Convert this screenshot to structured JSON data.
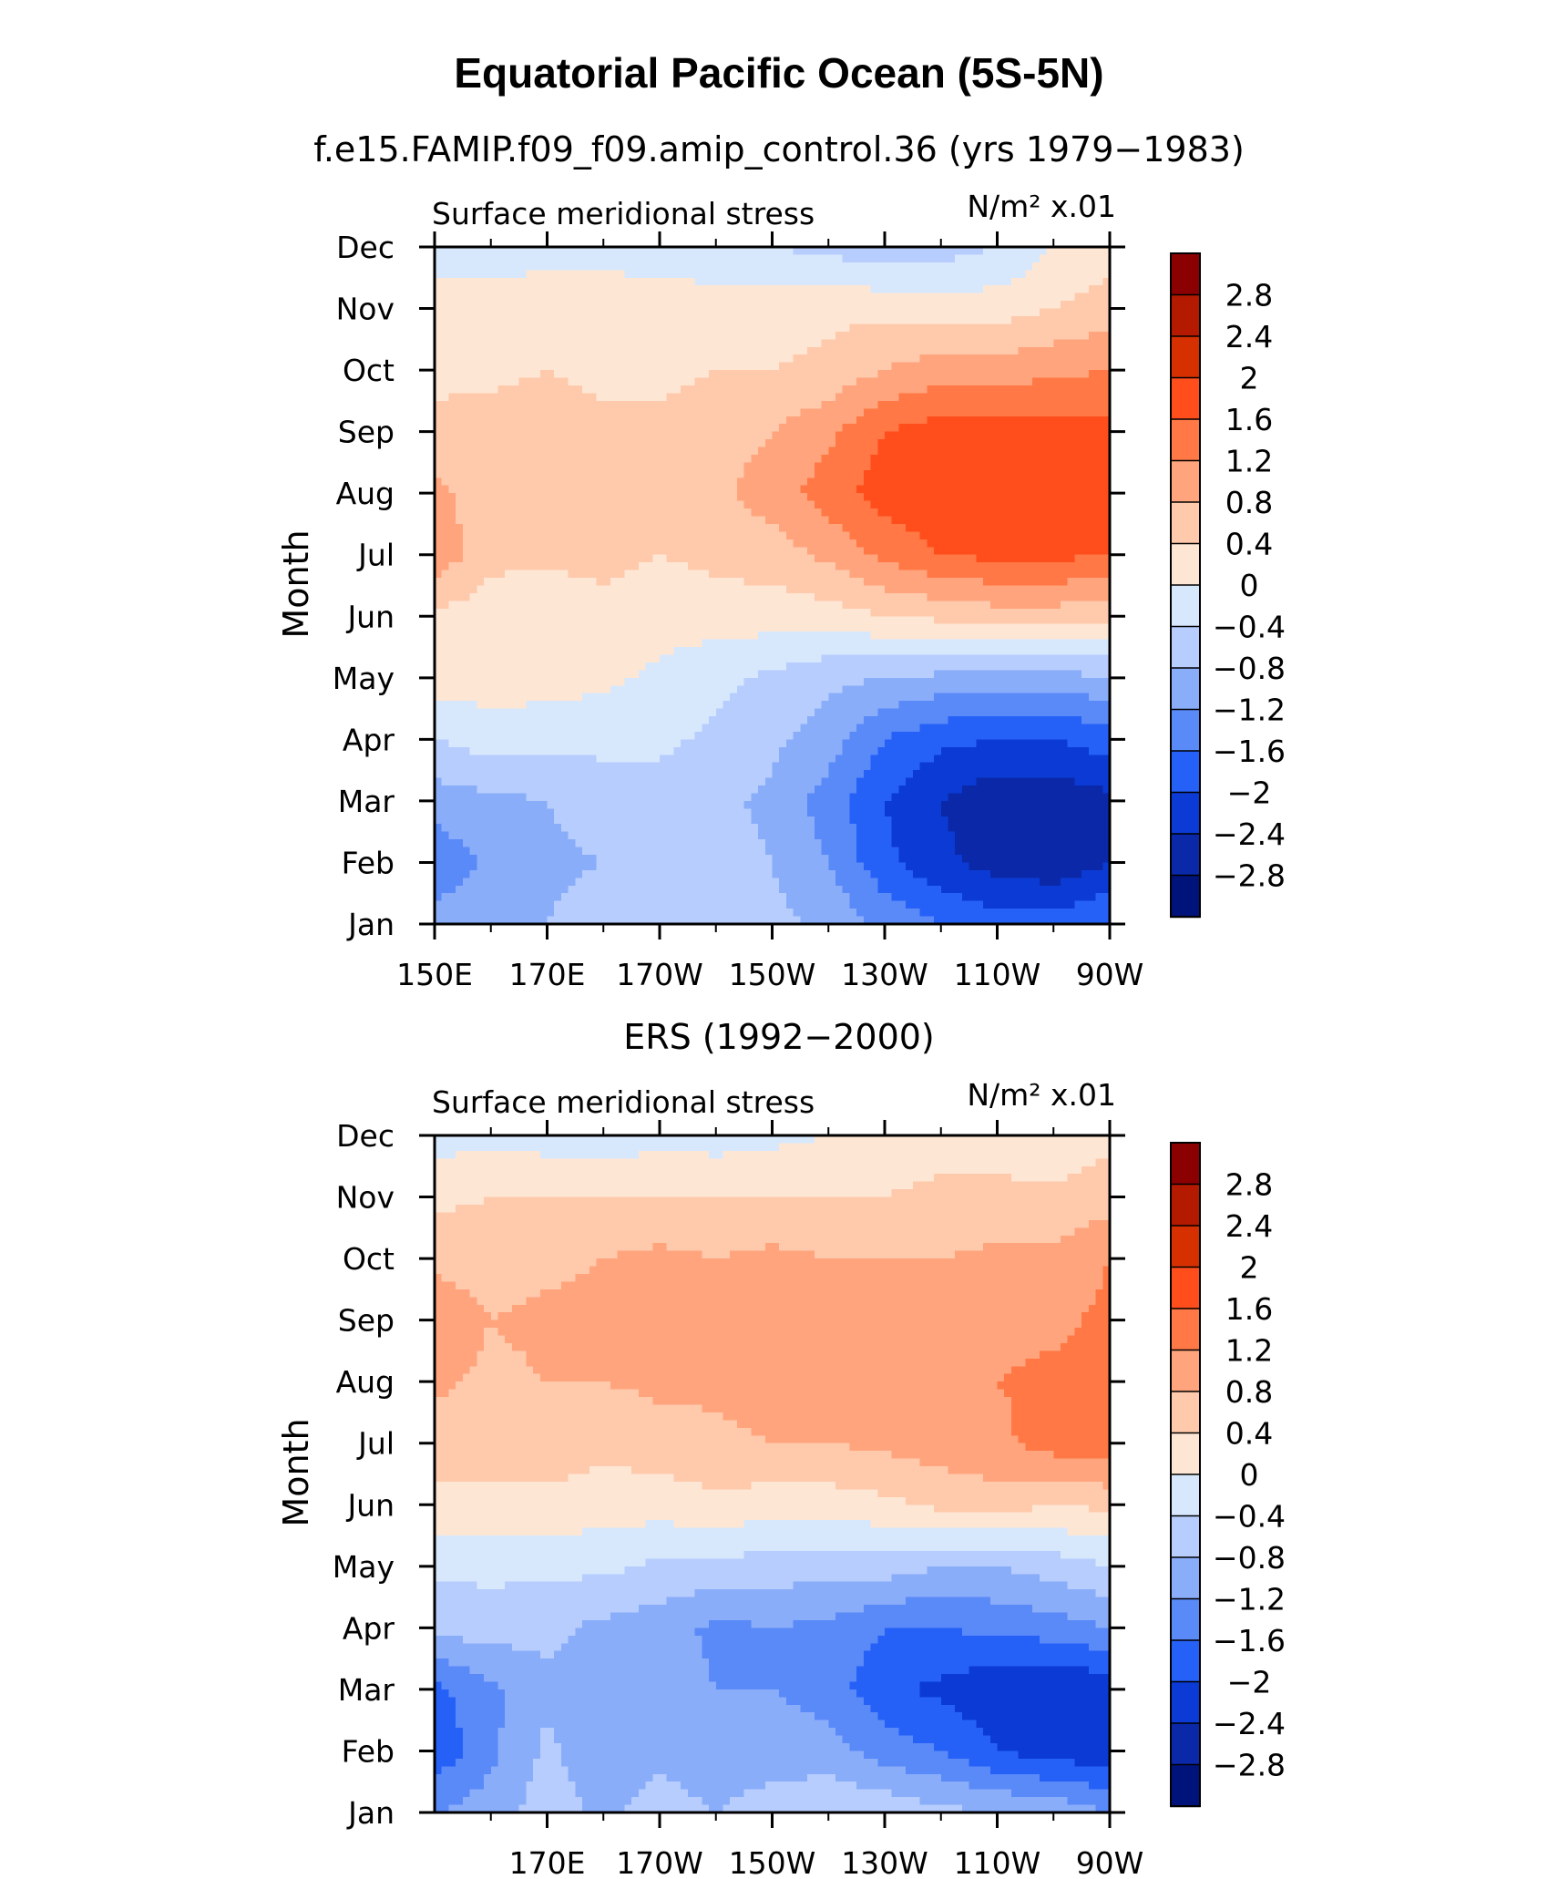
{
  "figure": {
    "title": "Equatorial Pacific Ocean (5S-5N)"
  },
  "colorbar": {
    "labels": [
      "2.8",
      "2.4",
      "2",
      "1.6",
      "1.2",
      "0.8",
      "0.4",
      "0",
      "−0.4",
      "−0.8",
      "−1.2",
      "−1.6",
      "−2",
      "−2.4",
      "−2.8"
    ],
    "colors": [
      "#8b0000",
      "#b31a00",
      "#d63000",
      "#ff4e1c",
      "#ff7845",
      "#ffa47c",
      "#ffc9ab",
      "#fee6d4",
      "#d7e8fd",
      "#b7cdfd",
      "#8aadfa",
      "#5a89f8",
      "#2661f7",
      "#0b3bd4",
      "#0a28a8",
      "#00137a"
    ]
  },
  "chart_data": [
    {
      "type": "heatmap",
      "subtitle": "f.e15.FAMIP.f09_f09.amip_control.36 (yrs 1979−1983)",
      "variable_label": "Surface meridional stress",
      "units_label": "N/m² x.01",
      "ylabel": "Month",
      "y_ticks": [
        "Jan",
        "Feb",
        "Mar",
        "Apr",
        "May",
        "Jun",
        "Jul",
        "Aug",
        "Sep",
        "Oct",
        "Nov",
        "Dec"
      ],
      "x_ticks": [
        "150E",
        "170E",
        "170W",
        "150W",
        "130W",
        "110W",
        "90W"
      ],
      "x_range": [
        "150E",
        "90W"
      ],
      "grid_lon": [
        150,
        160,
        170,
        180,
        190,
        200,
        210,
        220,
        230,
        240,
        250,
        260,
        270
      ],
      "grid_month": [
        "Jan",
        "Feb",
        "Mar",
        "Apr",
        "May",
        "Jun",
        "Jul",
        "Aug",
        "Sep",
        "Oct",
        "Nov",
        "Dec"
      ],
      "values": [
        [
          -1.0,
          -1.0,
          -0.8,
          -0.6,
          -0.6,
          -0.6,
          -0.7,
          -0.9,
          -1.3,
          -1.6,
          -1.8,
          -1.8,
          -1.6
        ],
        [
          -1.5,
          -1.1,
          -0.9,
          -0.8,
          -0.6,
          -0.6,
          -0.8,
          -1.2,
          -1.9,
          -2.3,
          -2.6,
          -2.7,
          -2.4
        ],
        [
          -1.0,
          -0.9,
          -0.8,
          -0.6,
          -0.6,
          -0.7,
          -0.9,
          -1.4,
          -2.0,
          -2.4,
          -2.7,
          -2.7,
          -2.5
        ],
        [
          -0.4,
          -0.2,
          -0.3,
          -0.3,
          -0.3,
          -0.5,
          -0.7,
          -1.0,
          -1.6,
          -1.9,
          -2.0,
          -2.0,
          -1.8
        ],
        [
          0.2,
          0.2,
          0.2,
          0.1,
          -0.1,
          -0.3,
          -0.5,
          -0.7,
          -0.8,
          -0.9,
          -1.0,
          -1.0,
          -0.8
        ],
        [
          0.3,
          0.2,
          0.1,
          0.3,
          0.2,
          0.2,
          0.2,
          0.2,
          0.4,
          0.5,
          0.6,
          0.6,
          0.5
        ],
        [
          1.1,
          0.5,
          0.5,
          0.5,
          0.4,
          0.5,
          0.6,
          0.9,
          1.3,
          1.6,
          1.7,
          1.7,
          1.6
        ],
        [
          0.9,
          0.6,
          0.5,
          0.5,
          0.5,
          0.7,
          1.0,
          1.4,
          1.8,
          1.9,
          1.9,
          1.9,
          1.8
        ],
        [
          0.5,
          0.6,
          0.6,
          0.5,
          0.5,
          0.6,
          0.8,
          1.1,
          1.6,
          1.8,
          1.8,
          1.8,
          1.7
        ],
        [
          0.3,
          0.3,
          0.4,
          0.3,
          0.3,
          0.4,
          0.4,
          0.5,
          0.8,
          1.0,
          1.0,
          1.1,
          1.2
        ],
        [
          0.3,
          0.2,
          0.3,
          0.3,
          0.2,
          0.2,
          0.2,
          0.3,
          0.3,
          0.2,
          0.2,
          0.4,
          0.6
        ],
        [
          -0.3,
          -0.2,
          -0.2,
          -0.2,
          -0.2,
          -0.3,
          -0.4,
          -0.5,
          -0.7,
          -0.6,
          -0.4,
          0.0,
          0.2
        ]
      ]
    },
    {
      "type": "heatmap",
      "subtitle": "ERS (1992−2000)",
      "variable_label": "Surface meridional stress",
      "units_label": "N/m² x.01",
      "ylabel": "Month",
      "y_ticks": [
        "Jan",
        "Feb",
        "Mar",
        "Apr",
        "May",
        "Jun",
        "Jul",
        "Aug",
        "Sep",
        "Oct",
        "Nov",
        "Dec"
      ],
      "x_ticks": [
        "170E",
        "170W",
        "150W",
        "130W",
        "110W",
        "90W"
      ],
      "x_range": [
        "150E",
        "90W"
      ],
      "grid_lon": [
        150,
        160,
        170,
        180,
        190,
        200,
        210,
        220,
        230,
        240,
        250,
        260,
        270
      ],
      "grid_month": [
        "Jan",
        "Feb",
        "Mar",
        "Apr",
        "May",
        "Jun",
        "Jul",
        "Aug",
        "Sep",
        "Oct",
        "Nov",
        "Dec"
      ],
      "values": [
        [
          -1.2,
          -1.0,
          -0.6,
          -0.9,
          -0.6,
          -0.8,
          -0.6,
          -0.5,
          -0.5,
          -0.7,
          -0.8,
          -0.9,
          -1.2
        ],
        [
          -1.9,
          -1.3,
          -0.7,
          -1.1,
          -0.9,
          -1.1,
          -1.0,
          -1.0,
          -1.4,
          -1.6,
          -2.0,
          -2.2,
          -2.3
        ],
        [
          -1.7,
          -1.3,
          -0.9,
          -1.1,
          -1.0,
          -1.2,
          -1.2,
          -1.4,
          -1.9,
          -2.1,
          -2.3,
          -2.4,
          -2.3
        ],
        [
          -0.7,
          -0.6,
          -0.7,
          -0.9,
          -1.0,
          -1.3,
          -1.2,
          -1.3,
          -1.6,
          -1.6,
          -1.5,
          -1.4,
          -1.2
        ],
        [
          -0.3,
          -0.3,
          -0.3,
          -0.3,
          -0.5,
          -0.5,
          -0.6,
          -0.6,
          -0.6,
          -0.8,
          -0.8,
          -0.6,
          -0.4
        ],
        [
          0.3,
          0.3,
          0.3,
          0.2,
          0.2,
          0.3,
          0.2,
          0.2,
          0.3,
          0.5,
          0.6,
          0.4,
          0.5
        ],
        [
          0.6,
          0.6,
          0.6,
          0.5,
          0.6,
          0.7,
          0.8,
          0.8,
          0.9,
          1.0,
          1.1,
          1.4,
          1.5
        ],
        [
          0.9,
          0.7,
          0.8,
          0.8,
          0.9,
          0.9,
          1.0,
          1.0,
          1.1,
          1.1,
          1.2,
          1.3,
          1.4
        ],
        [
          1.1,
          0.8,
          0.9,
          0.9,
          1.0,
          1.0,
          1.0,
          1.0,
          1.0,
          1.0,
          1.1,
          1.1,
          1.3
        ],
        [
          0.7,
          0.6,
          0.7,
          0.8,
          0.9,
          0.8,
          0.9,
          0.8,
          0.8,
          0.8,
          0.9,
          0.9,
          1.2
        ],
        [
          0.3,
          0.4,
          0.4,
          0.4,
          0.4,
          0.4,
          0.4,
          0.4,
          0.4,
          0.5,
          0.5,
          0.5,
          0.6
        ],
        [
          -0.2,
          -0.1,
          -0.2,
          -0.3,
          -0.1,
          -0.2,
          -0.1,
          0.0,
          0.1,
          0.2,
          0.2,
          0.1,
          0.3
        ]
      ]
    }
  ]
}
